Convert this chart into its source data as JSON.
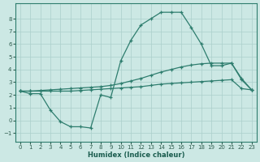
{
  "xlabel": "Humidex (Indice chaleur)",
  "background_color": "#cce8e4",
  "grid_color": "#aacfcb",
  "line_color": "#2e7d6e",
  "xlim": [
    -0.5,
    23.5
  ],
  "ylim": [
    -1.7,
    9.2
  ],
  "xticks": [
    0,
    1,
    2,
    3,
    4,
    5,
    6,
    7,
    8,
    9,
    10,
    11,
    12,
    13,
    14,
    15,
    16,
    17,
    18,
    19,
    20,
    21,
    22,
    23
  ],
  "yticks": [
    -1,
    0,
    1,
    2,
    3,
    4,
    5,
    6,
    7,
    8
  ],
  "line1_x": [
    0,
    1,
    2,
    3,
    4,
    5,
    6,
    7,
    8,
    9,
    10,
    11,
    12,
    13,
    14,
    15,
    16,
    17,
    18,
    19,
    20,
    21,
    22,
    23
  ],
  "line1_y": [
    2.3,
    2.1,
    2.1,
    0.8,
    -0.1,
    -0.5,
    -0.5,
    -0.6,
    2.0,
    1.8,
    4.7,
    6.3,
    7.5,
    8.0,
    8.5,
    8.5,
    8.5,
    7.3,
    6.0,
    4.3,
    4.3,
    4.5,
    3.3,
    2.4
  ],
  "line2_x": [
    0,
    1,
    2,
    3,
    4,
    5,
    6,
    7,
    8,
    9,
    10,
    11,
    12,
    13,
    14,
    15,
    16,
    17,
    18,
    19,
    20,
    21,
    22,
    23
  ],
  "line2_y": [
    2.3,
    2.3,
    2.35,
    2.4,
    2.45,
    2.5,
    2.55,
    2.6,
    2.65,
    2.75,
    2.9,
    3.1,
    3.3,
    3.55,
    3.8,
    4.0,
    4.2,
    4.35,
    4.45,
    4.5,
    4.5,
    4.5,
    3.2,
    2.4
  ],
  "line3_x": [
    0,
    1,
    2,
    3,
    4,
    5,
    6,
    7,
    8,
    9,
    10,
    11,
    12,
    13,
    14,
    15,
    16,
    17,
    18,
    19,
    20,
    21,
    22,
    23
  ],
  "line3_y": [
    2.3,
    2.3,
    2.3,
    2.3,
    2.3,
    2.3,
    2.35,
    2.4,
    2.45,
    2.5,
    2.55,
    2.6,
    2.65,
    2.75,
    2.85,
    2.9,
    2.95,
    3.0,
    3.05,
    3.1,
    3.15,
    3.2,
    2.5,
    2.4
  ]
}
